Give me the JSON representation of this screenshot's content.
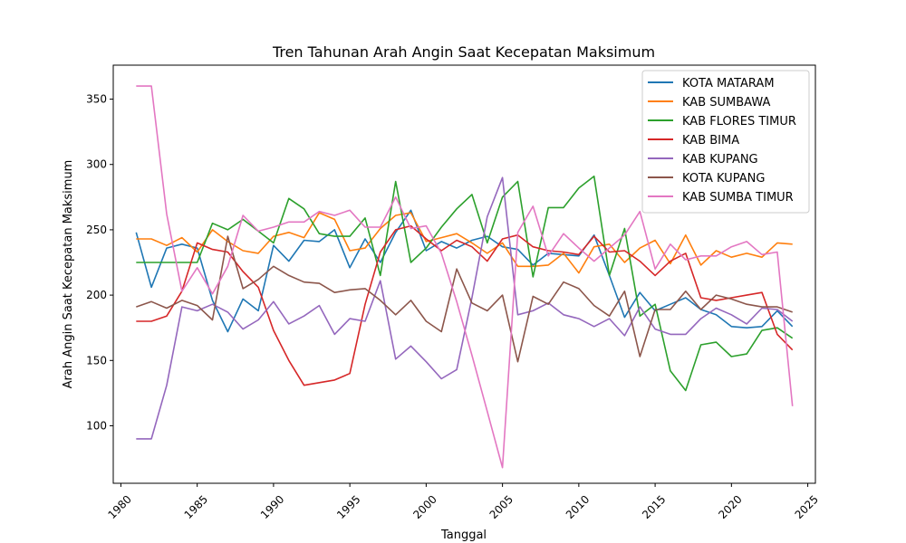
{
  "chart_data": {
    "type": "line",
    "title": "Tren Tahunan Arah Angin Saat Kecepatan Maksimum",
    "xlabel": "Tanggal",
    "ylabel": "Arah Angin Saat Kecepatan Maksimum",
    "xlim": [
      1979.5,
      2025.5
    ],
    "ylim": [
      56,
      376
    ],
    "xticks": [
      1980,
      1985,
      1990,
      1995,
      2000,
      2005,
      2010,
      2015,
      2020,
      2025
    ],
    "xtick_labels": [
      "1980",
      "1985",
      "1990",
      "1995",
      "2000",
      "2005",
      "2010",
      "2015",
      "2020",
      "2025"
    ],
    "yticks": [
      100,
      150,
      200,
      250,
      300,
      350
    ],
    "ytick_labels": [
      "100",
      "150",
      "200",
      "250",
      "300",
      "350"
    ],
    "grid": false,
    "legend_position": "top-right",
    "x": [
      1981,
      1982,
      1983,
      1984,
      1985,
      1986,
      1987,
      1988,
      1989,
      1990,
      1991,
      1992,
      1993,
      1994,
      1995,
      1996,
      1997,
      1998,
      1999,
      2000,
      2001,
      2002,
      2003,
      2004,
      2005,
      2006,
      2007,
      2008,
      2009,
      2010,
      2011,
      2012,
      2013,
      2014,
      2015,
      2016,
      2017,
      2018,
      2019,
      2020,
      2021,
      2022,
      2023,
      2024
    ],
    "series": [
      {
        "name": "KOTA MATARAM",
        "color": "#1f77b4",
        "values": [
          248,
          206,
          236,
          239,
          236,
          196,
          172,
          197,
          188,
          238,
          226,
          242,
          241,
          250,
          221,
          243,
          225,
          248,
          265,
          234,
          241,
          236,
          242,
          245,
          237,
          235,
          223,
          232,
          231,
          230,
          246,
          215,
          183,
          202,
          188,
          193,
          198,
          189,
          185,
          176,
          175,
          176,
          188,
          176
        ]
      },
      {
        "name": "KAB SUMBAWA",
        "color": "#ff7f0e",
        "values": [
          243,
          243,
          238,
          244,
          233,
          250,
          241,
          234,
          232,
          245,
          248,
          244,
          263,
          258,
          234,
          236,
          251,
          261,
          263,
          241,
          244,
          247,
          240,
          232,
          240,
          222,
          222,
          223,
          232,
          217,
          237,
          239,
          225,
          236,
          242,
          224,
          246,
          223,
          234,
          229,
          232,
          229,
          240,
          239
        ]
      },
      {
        "name": "KAB FLORES TIMUR",
        "color": "#2ca02c",
        "values": [
          225,
          225,
          225,
          225,
          225,
          255,
          250,
          258,
          249,
          240,
          274,
          266,
          247,
          245,
          245,
          259,
          215,
          287,
          225,
          236,
          252,
          266,
          277,
          240,
          275,
          287,
          214,
          267,
          267,
          282,
          291,
          215,
          251,
          184,
          193,
          142,
          127,
          162,
          164,
          153,
          155,
          173,
          175,
          167
        ]
      },
      {
        "name": "KAB BIMA",
        "color": "#d62728",
        "values": [
          180,
          180,
          184,
          203,
          240,
          235,
          233,
          218,
          206,
          173,
          150,
          131,
          133,
          135,
          140,
          193,
          233,
          250,
          253,
          243,
          234,
          242,
          237,
          226,
          243,
          246,
          237,
          234,
          233,
          231,
          245,
          233,
          234,
          226,
          215,
          226,
          232,
          198,
          196,
          198,
          200,
          202,
          170,
          158
        ]
      },
      {
        "name": "KAB KUPANG",
        "color": "#9467bd",
        "values": [
          90,
          90,
          131,
          191,
          188,
          193,
          187,
          174,
          181,
          195,
          178,
          184,
          192,
          170,
          182,
          180,
          211,
          151,
          161,
          149,
          136,
          143,
          198,
          260,
          290,
          185,
          188,
          194,
          185,
          182,
          176,
          182,
          169,
          191,
          174,
          170,
          170,
          182,
          190,
          185,
          178,
          190,
          189,
          180
        ]
      },
      {
        "name": "KOTA KUPANG",
        "color": "#8c564b",
        "values": [
          191,
          195,
          190,
          196,
          192,
          181,
          245,
          205,
          212,
          222,
          215,
          210,
          209,
          202,
          204,
          205,
          196,
          185,
          196,
          180,
          172,
          220,
          194,
          188,
          200,
          149,
          199,
          193,
          210,
          205,
          192,
          184,
          203,
          153,
          189,
          189,
          203,
          189,
          200,
          197,
          193,
          191,
          191,
          187
        ]
      },
      {
        "name": "KAB SUMBA TIMUR",
        "color": "#e377c2",
        "values": [
          360,
          360,
          262,
          203,
          221,
          201,
          222,
          261,
          249,
          252,
          256,
          256,
          264,
          261,
          265,
          252,
          252,
          275,
          251,
          253,
          232,
          195,
          154,
          111,
          68,
          248,
          268,
          230,
          247,
          236,
          226,
          236,
          246,
          264,
          220,
          239,
          227,
          230,
          230,
          237,
          241,
          231,
          233,
          115
        ]
      }
    ]
  }
}
